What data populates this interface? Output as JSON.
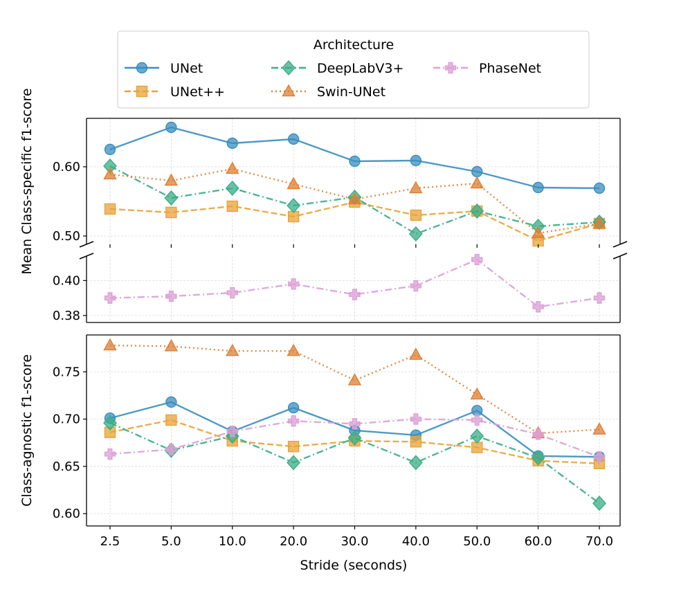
{
  "chart_data": [
    {
      "panel": "top-upper",
      "type": "line",
      "ylabel_shared": "Mean Class-specific f1-score",
      "ylim": [
        0.488,
        0.67
      ],
      "yticks": [
        0.5,
        0.6
      ],
      "yticklabels": [
        "0.50",
        "0.60"
      ],
      "categories": [
        "2.5",
        "5.0",
        "10.0",
        "20.0",
        "30.0",
        "40.0",
        "50.0",
        "60.0",
        "70.0"
      ],
      "series": [
        {
          "name": "UNet",
          "values": [
            0.625,
            0.657,
            0.634,
            0.64,
            0.608,
            0.609,
            0.593,
            0.57,
            0.569
          ]
        },
        {
          "name": "UNet++",
          "values": [
            0.539,
            0.534,
            0.543,
            0.528,
            0.549,
            0.53,
            0.536,
            0.493,
            0.518
          ]
        },
        {
          "name": "DeepLabV3+",
          "values": [
            0.601,
            0.555,
            0.569,
            0.544,
            0.556,
            0.503,
            0.536,
            0.514,
            0.52
          ]
        },
        {
          "name": "Swin-UNet",
          "values": [
            0.589,
            0.58,
            0.597,
            0.575,
            0.553,
            0.569,
            0.576,
            0.504,
            0.518
          ]
        }
      ]
    },
    {
      "panel": "top-lower",
      "type": "line",
      "ylim": [
        0.376,
        0.414
      ],
      "yticks": [
        0.38,
        0.4
      ],
      "yticklabels": [
        "0.38",
        "0.40"
      ],
      "categories": [
        "2.5",
        "5.0",
        "10.0",
        "20.0",
        "30.0",
        "40.0",
        "50.0",
        "60.0",
        "70.0"
      ],
      "series": [
        {
          "name": "PhaseNet",
          "values": [
            0.39,
            0.391,
            0.393,
            0.398,
            0.392,
            0.397,
            0.412,
            0.385,
            0.39
          ]
        }
      ]
    },
    {
      "panel": "bottom",
      "type": "line",
      "ylabel": "Class-agnostic f1-score",
      "xlabel": "Stride (seconds)",
      "ylim": [
        0.587,
        0.789
      ],
      "yticks": [
        0.6,
        0.65,
        0.7,
        0.75
      ],
      "yticklabels": [
        "0.60",
        "0.65",
        "0.70",
        "0.75"
      ],
      "categories": [
        "2.5",
        "5.0",
        "10.0",
        "20.0",
        "30.0",
        "40.0",
        "50.0",
        "60.0",
        "70.0"
      ],
      "series": [
        {
          "name": "UNet",
          "values": [
            0.701,
            0.718,
            0.687,
            0.712,
            0.688,
            0.683,
            0.709,
            0.661,
            0.66
          ]
        },
        {
          "name": "UNet++",
          "values": [
            0.686,
            0.699,
            0.677,
            0.671,
            0.677,
            0.676,
            0.67,
            0.656,
            0.653
          ]
        },
        {
          "name": "DeepLabV3+",
          "values": [
            0.696,
            0.667,
            0.682,
            0.654,
            0.68,
            0.654,
            0.682,
            0.659,
            0.611
          ]
        },
        {
          "name": "Swin-UNet",
          "values": [
            0.778,
            0.777,
            0.772,
            0.772,
            0.741,
            0.768,
            0.726,
            0.685,
            0.689
          ]
        },
        {
          "name": "PhaseNet",
          "values": [
            0.663,
            0.668,
            0.687,
            0.698,
            0.695,
            0.7,
            0.699,
            0.684,
            0.66
          ]
        }
      ]
    }
  ],
  "legend": {
    "title": "Architecture",
    "entries": [
      "UNet",
      "UNet++",
      "DeepLabV3+",
      "Swin-UNet",
      "PhaseNet"
    ]
  },
  "styles": {
    "UNet": {
      "color": "#3a8ebf",
      "marker": "circle",
      "dash": "solid"
    },
    "UNet++": {
      "color": "#e8a33a",
      "marker": "square",
      "dash": "dashed"
    },
    "DeepLabV3+": {
      "color": "#3aad86",
      "marker": "diamond",
      "dash": "dashdot"
    },
    "Swin-UNet": {
      "color": "#de7f33",
      "marker": "triangle",
      "dash": "dotted"
    },
    "PhaseNet": {
      "color": "#dca0d6",
      "marker": "plus",
      "dash": "dashdot"
    }
  }
}
